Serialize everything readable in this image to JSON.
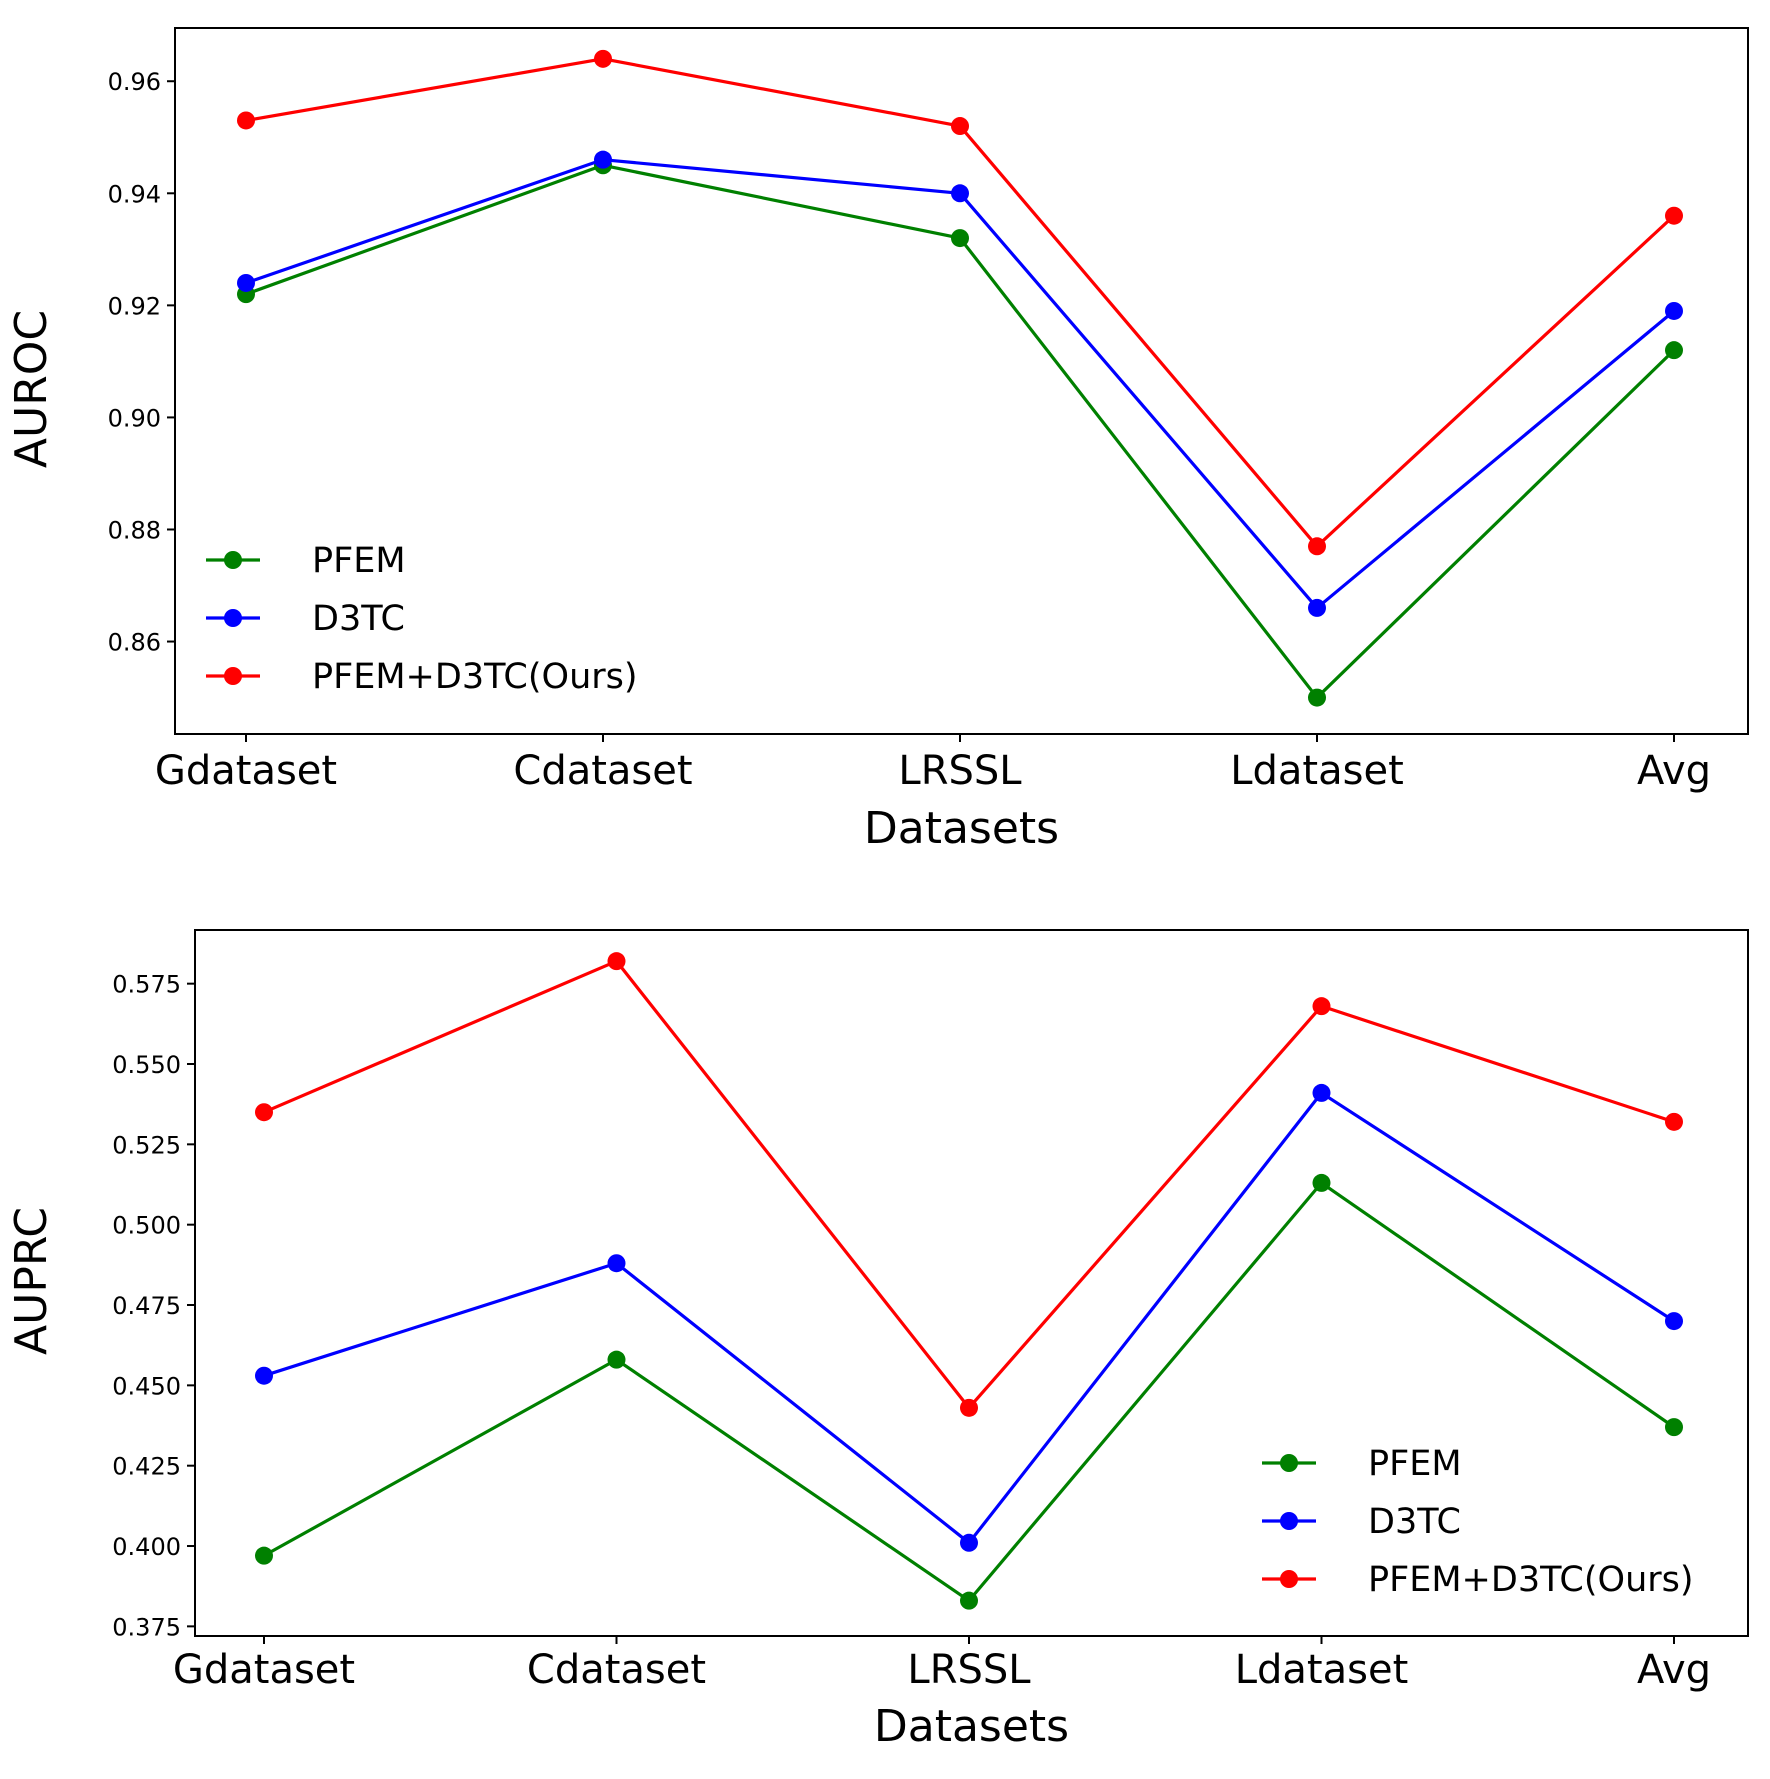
{
  "chart_data": [
    {
      "type": "line",
      "title": "",
      "xlabel": "Datasets",
      "ylabel": "AUROC",
      "categories": [
        "Gdataset",
        "Cdataset",
        "LRSSL",
        "Ldataset",
        "Avg"
      ],
      "ylim": [
        0.8435,
        0.9695
      ],
      "yticks": [
        0.86,
        0.88,
        0.9,
        0.92,
        0.94,
        0.96
      ],
      "ytick_labels": [
        "0.86",
        "0.88",
        "0.90",
        "0.92",
        "0.94",
        "0.96"
      ],
      "legend_loc": "lower-left",
      "grid": false,
      "series": [
        {
          "name": "PFEM",
          "color": "#008000",
          "values": [
            0.922,
            0.945,
            0.932,
            0.85,
            0.912
          ]
        },
        {
          "name": "D3TC",
          "color": "#0000ff",
          "values": [
            0.924,
            0.946,
            0.94,
            0.866,
            0.919
          ]
        },
        {
          "name": "PFEM+D3TC(Ours)",
          "color": "#ff0000",
          "values": [
            0.953,
            0.964,
            0.952,
            0.877,
            0.936
          ]
        }
      ]
    },
    {
      "type": "line",
      "title": "",
      "xlabel": "Datasets",
      "ylabel": "AUPRC",
      "categories": [
        "Gdataset",
        "Cdataset",
        "LRSSL",
        "Ldataset",
        "Avg"
      ],
      "ylim": [
        0.372,
        0.5917
      ],
      "yticks": [
        0.375,
        0.4,
        0.425,
        0.45,
        0.475,
        0.5,
        0.525,
        0.55,
        0.575
      ],
      "ytick_labels": [
        "0.375",
        "0.400",
        "0.425",
        "0.450",
        "0.475",
        "0.500",
        "0.525",
        "0.550",
        "0.575"
      ],
      "legend_loc": "lower-right",
      "grid": false,
      "series": [
        {
          "name": "PFEM",
          "color": "#008000",
          "values": [
            0.397,
            0.458,
            0.383,
            0.513,
            0.437
          ]
        },
        {
          "name": "D3TC",
          "color": "#0000ff",
          "values": [
            0.453,
            0.488,
            0.401,
            0.541,
            0.47
          ]
        },
        {
          "name": "PFEM+D3TC(Ours)",
          "color": "#ff0000",
          "values": [
            0.535,
            0.582,
            0.443,
            0.568,
            0.532
          ]
        }
      ]
    }
  ]
}
